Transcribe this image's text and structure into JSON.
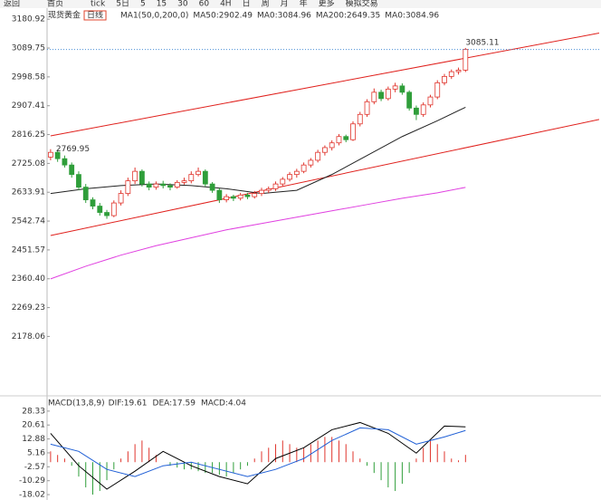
{
  "toolbar": {
    "items": [
      "返回",
      "首页",
      "tick",
      "5日",
      "5",
      "15",
      "30",
      "60",
      "4H",
      "日",
      "周",
      "月",
      "年",
      "更多",
      "模拟交易"
    ]
  },
  "info": {
    "symbol": "现货黄金",
    "period": "日线",
    "indicator": "MA1(50,0,200,0)",
    "items": [
      {
        "text": "MA50:2902.49",
        "color": "#000000"
      },
      {
        "text": "MA0:3084.96",
        "color": "#1f5fd6"
      },
      {
        "text": "MA200:2649.35",
        "color": "#d030d0"
      },
      {
        "text": "MA0:3084.96",
        "color": "#f08a1c"
      }
    ]
  },
  "chart_data": [
    {
      "type": "candlestick",
      "up_color": "#e0342c",
      "down_color": "#2f9e3a",
      "ylim": [
        1996,
        3213
      ],
      "yticks": [
        3180.92,
        3089.75,
        2998.58,
        2907.41,
        2816.25,
        2725.08,
        2633.91,
        2542.74,
        2451.57,
        {
          "value": 2360.4,
          "label": "2360.40"
        },
        2269.23,
        2178.06
      ],
      "ohlc": [
        [
          2745,
          2769.95,
          2735,
          2760
        ],
        [
          2760,
          2768,
          2730,
          2740
        ],
        [
          2740,
          2750,
          2712,
          2720
        ],
        [
          2720,
          2728,
          2680,
          2690
        ],
        [
          2690,
          2700,
          2640,
          2650
        ],
        [
          2650,
          2660,
          2600,
          2610
        ],
        [
          2610,
          2618,
          2580,
          2590
        ],
        [
          2590,
          2600,
          2560,
          2570
        ],
        [
          2570,
          2578,
          2550,
          2560
        ],
        [
          2560,
          2608,
          2555,
          2600
        ],
        [
          2600,
          2640,
          2592,
          2630
        ],
        [
          2630,
          2680,
          2622,
          2670
        ],
        [
          2670,
          2712,
          2660,
          2700
        ],
        [
          2700,
          2706,
          2652,
          2660
        ],
        [
          2660,
          2668,
          2640,
          2650
        ],
        [
          2650,
          2668,
          2642,
          2660
        ],
        [
          2660,
          2670,
          2646,
          2655
        ],
        [
          2655,
          2662,
          2640,
          2650
        ],
        [
          2650,
          2672,
          2645,
          2665
        ],
        [
          2665,
          2680,
          2658,
          2670
        ],
        [
          2670,
          2700,
          2662,
          2690
        ],
        [
          2690,
          2712,
          2684,
          2700
        ],
        [
          2700,
          2706,
          2652,
          2660
        ],
        [
          2660,
          2666,
          2632,
          2640
        ],
        [
          2640,
          2646,
          2600,
          2610
        ],
        [
          2610,
          2628,
          2602,
          2620
        ],
        [
          2620,
          2626,
          2606,
          2615
        ],
        [
          2615,
          2632,
          2608,
          2625
        ],
        [
          2625,
          2632,
          2612,
          2620
        ],
        [
          2620,
          2638,
          2614,
          2630
        ],
        [
          2630,
          2648,
          2622,
          2640
        ],
        [
          2640,
          2652,
          2632,
          2645
        ],
        [
          2645,
          2668,
          2638,
          2660
        ],
        [
          2660,
          2682,
          2652,
          2675
        ],
        [
          2675,
          2698,
          2668,
          2690
        ],
        [
          2690,
          2708,
          2680,
          2700
        ],
        [
          2700,
          2728,
          2694,
          2720
        ],
        [
          2720,
          2742,
          2712,
          2735
        ],
        [
          2735,
          2768,
          2728,
          2760
        ],
        [
          2760,
          2782,
          2750,
          2775
        ],
        [
          2775,
          2798,
          2766,
          2790
        ],
        [
          2790,
          2818,
          2782,
          2810
        ],
        [
          2810,
          2816,
          2792,
          2800
        ],
        [
          2800,
          2858,
          2796,
          2850
        ],
        [
          2850,
          2888,
          2842,
          2880
        ],
        [
          2880,
          2928,
          2872,
          2920
        ],
        [
          2920,
          2962,
          2912,
          2950
        ],
        [
          2950,
          2958,
          2922,
          2930
        ],
        [
          2930,
          2968,
          2924,
          2960
        ],
        [
          2960,
          2980,
          2950,
          2970
        ],
        [
          2970,
          2978,
          2942,
          2950
        ],
        [
          2950,
          2956,
          2892,
          2900
        ],
        [
          2900,
          2908,
          2862,
          2880
        ],
        [
          2880,
          2918,
          2872,
          2910
        ],
        [
          2910,
          2942,
          2902,
          2935
        ],
        [
          2935,
          2988,
          2928,
          2980
        ],
        [
          2980,
          3008,
          2972,
          3000
        ],
        [
          3000,
          3022,
          2992,
          3015
        ],
        [
          3015,
          3028,
          3006,
          3020
        ],
        [
          3020,
          3090,
          3014,
          3085.11
        ]
      ],
      "series": [
        {
          "color": "#222222",
          "x": [
            0,
            5,
            10,
            15,
            20,
            25,
            30,
            35,
            40,
            45,
            50,
            55,
            59
          ],
          "values": [
            2630,
            2645,
            2655,
            2660,
            2655,
            2645,
            2630,
            2640,
            2690,
            2750,
            2810,
            2860,
            2902.49
          ]
        },
        {
          "color": "#e040e0",
          "x": [
            0,
            5,
            10,
            15,
            20,
            25,
            30,
            35,
            40,
            45,
            50,
            55,
            59
          ],
          "values": [
            2360,
            2400,
            2435,
            2465,
            2490,
            2515,
            2535,
            2555,
            2575,
            2595,
            2615,
            2632,
            2649.35
          ]
        }
      ],
      "trendlines": [
        {
          "color": "#e0201c",
          "x": [
            0,
            78
          ],
          "values": [
            2812,
            3137
          ]
        },
        {
          "color": "#e0201c",
          "x": [
            0,
            78
          ],
          "values": [
            2497,
            2864
          ]
        }
      ]
    },
    {
      "type": "macd",
      "title": "MACD(13,8,9)",
      "ylim": [
        -21,
        35.3
      ],
      "yticks": [
        28.33,
        20.61,
        12.88,
        5.16,
        -2.57,
        -10.29,
        -18.02
      ],
      "histogram": [
        6,
        4,
        2,
        -2,
        -8,
        -14,
        -18,
        -16,
        -10,
        -4,
        2,
        6,
        10,
        12,
        8,
        4,
        0,
        -2,
        -3,
        -4,
        -4,
        -5,
        -6,
        -6,
        -7,
        -8,
        -6,
        -4,
        -2,
        2,
        6,
        8,
        10,
        12,
        10,
        8,
        8,
        10,
        12,
        14,
        14,
        12,
        10,
        6,
        2,
        -2,
        -6,
        -10,
        -14,
        -16,
        -12,
        -6,
        2,
        8,
        12,
        10,
        6,
        2,
        1,
        4.04
      ],
      "histogram_label": "MACD:4.04",
      "histogram_color": "#d030d0",
      "up_color": "#e0342c",
      "down_color": "#2f9e3a",
      "series": [
        {
          "label": "DIF:19.61",
          "color": "#000000",
          "x": [
            0,
            4,
            8,
            12,
            16,
            20,
            24,
            28,
            32,
            36,
            40,
            44,
            48,
            52,
            56,
            59
          ],
          "values": [
            16,
            -2,
            -15,
            -5,
            6,
            -2,
            -8,
            -12,
            2,
            8,
            18,
            22,
            16,
            5,
            20,
            19.61
          ]
        },
        {
          "label": "DEA:17.59",
          "color": "#1f5fd6",
          "x": [
            0,
            4,
            8,
            12,
            16,
            20,
            24,
            28,
            32,
            36,
            40,
            44,
            48,
            52,
            56,
            59
          ],
          "values": [
            10,
            6,
            -4,
            -8,
            -2,
            0,
            -4,
            -8,
            -4,
            2,
            12,
            19,
            18,
            10,
            14,
            17.59
          ]
        }
      ]
    }
  ]
}
